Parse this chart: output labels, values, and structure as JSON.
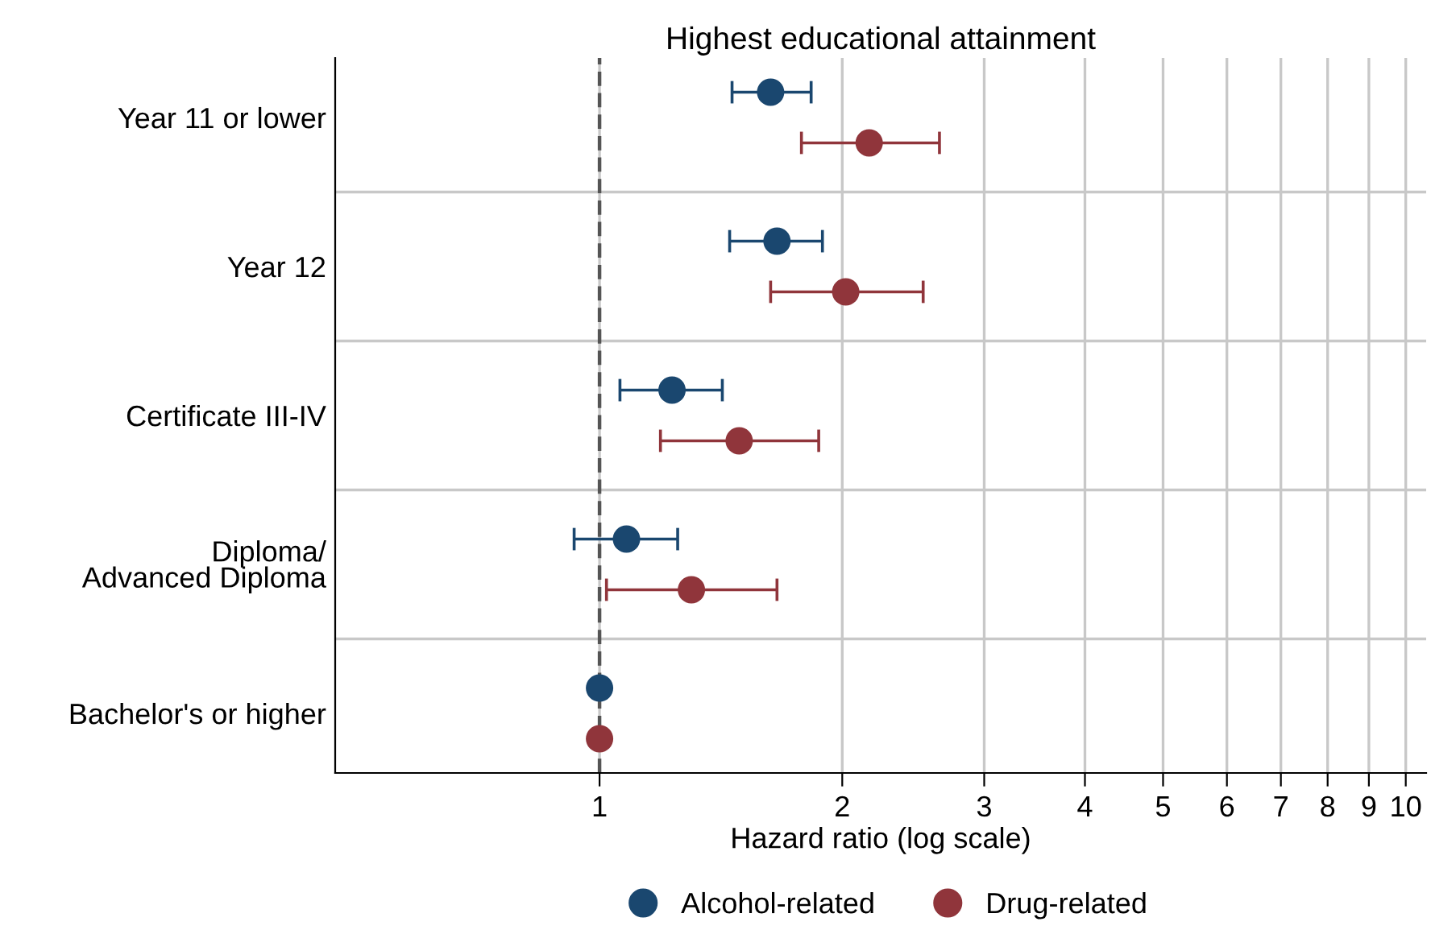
{
  "chart_data": {
    "type": "scatter",
    "orientation": "horizontal",
    "title": "Highest educational attainment",
    "xlabel": "Hazard ratio (log scale)",
    "categories": [
      "Year 11 or lower",
      "Year 12",
      "Certificate III-IV",
      "Diploma/\nAdvanced Diploma",
      "Bachelor's or higher"
    ],
    "series": [
      {
        "name": "Alcohol-related",
        "color": "#1a476f",
        "values": [
          1.63,
          1.66,
          1.23,
          1.08,
          1
        ],
        "errors": [
          [
            1.46,
            1.83
          ],
          [
            1.45,
            1.89
          ],
          [
            1.06,
            1.42
          ],
          [
            0.93,
            1.25
          ],
          null
        ]
      },
      {
        "name": "Drug-related",
        "color": "#90353b",
        "values": [
          2.16,
          2.02,
          1.49,
          1.3,
          1
        ],
        "errors": [
          [
            1.78,
            2.64
          ],
          [
            1.63,
            2.52
          ],
          [
            1.19,
            1.87
          ],
          [
            1.02,
            1.66
          ],
          null
        ]
      }
    ],
    "log": "x",
    "xlim": [
      0.47,
      10.6
    ],
    "xticks": [
      1,
      2,
      3,
      4,
      5,
      6,
      7,
      8,
      9,
      10
    ],
    "ref_lines": [
      {
        "axis": "x",
        "value": 1,
        "color": "#555555",
        "line_style": "dashed"
      }
    ],
    "grid": true,
    "legend": "bottom",
    "marker": "circle"
  }
}
